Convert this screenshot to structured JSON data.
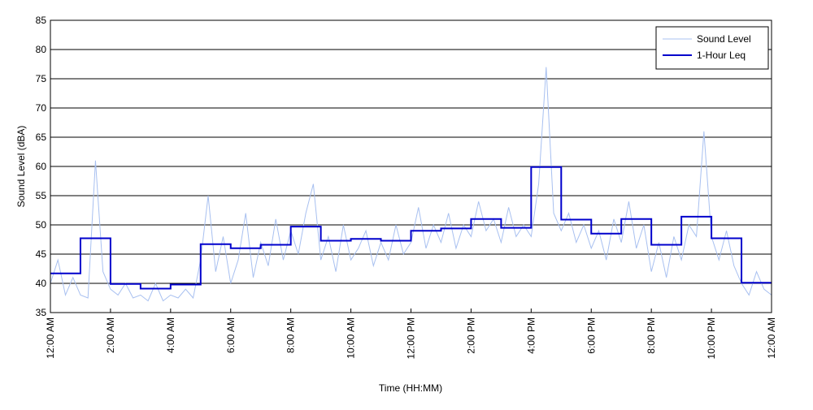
{
  "chart_data": {
    "type": "line",
    "xlabel": "Time (HH:MM)",
    "ylabel": "Sound Level (dBA)",
    "xlim": [
      0,
      24
    ],
    "ylim": [
      35,
      85
    ],
    "yticks": [
      35,
      40,
      45,
      50,
      55,
      60,
      65,
      70,
      75,
      80,
      85
    ],
    "xticks": [
      {
        "value": 0,
        "label": "12:00 AM"
      },
      {
        "value": 2,
        "label": "2:00 AM"
      },
      {
        "value": 4,
        "label": "4:00 AM"
      },
      {
        "value": 6,
        "label": "6:00 AM"
      },
      {
        "value": 8,
        "label": "8:00 AM"
      },
      {
        "value": 10,
        "label": "10:00 AM"
      },
      {
        "value": 12,
        "label": "12:00 PM"
      },
      {
        "value": 14,
        "label": "2:00 PM"
      },
      {
        "value": 16,
        "label": "4:00 PM"
      },
      {
        "value": 18,
        "label": "6:00 PM"
      },
      {
        "value": 20,
        "label": "8:00 PM"
      },
      {
        "value": 22,
        "label": "10:00 PM"
      },
      {
        "value": 24,
        "label": "12:00 AM"
      }
    ],
    "grid": "y",
    "legend": "northeast",
    "series": [
      {
        "name": "Sound Level",
        "color": "#a8c0f0",
        "drawstyle": "line",
        "x": [
          0,
          0.25,
          0.5,
          0.75,
          1,
          1.25,
          1.5,
          1.75,
          2,
          2.25,
          2.5,
          2.75,
          3,
          3.25,
          3.5,
          3.75,
          4,
          4.25,
          4.5,
          4.75,
          5,
          5.25,
          5.5,
          5.75,
          6,
          6.25,
          6.5,
          6.75,
          7,
          7.25,
          7.5,
          7.75,
          8,
          8.25,
          8.5,
          8.75,
          9,
          9.25,
          9.5,
          9.75,
          10,
          10.25,
          10.5,
          10.75,
          11,
          11.25,
          11.5,
          11.75,
          12,
          12.25,
          12.5,
          12.75,
          13,
          13.25,
          13.5,
          13.75,
          14,
          14.25,
          14.5,
          14.75,
          15,
          15.25,
          15.5,
          15.75,
          16,
          16.25,
          16.5,
          16.75,
          17,
          17.25,
          17.5,
          17.75,
          18,
          18.25,
          18.5,
          18.75,
          19,
          19.25,
          19.5,
          19.75,
          20,
          20.25,
          20.5,
          20.75,
          21,
          21.25,
          21.5,
          21.75,
          22,
          22.25,
          22.5,
          22.75,
          23,
          23.25,
          23.5,
          23.75,
          24
        ],
        "values": [
          40,
          44,
          38,
          41,
          38,
          37.5,
          61,
          42,
          39,
          38,
          40,
          37.5,
          38,
          37,
          40,
          37,
          38,
          37.5,
          39,
          37.5,
          44,
          55,
          42,
          48,
          40,
          44,
          52,
          41,
          47,
          43,
          51,
          44,
          49,
          45,
          52,
          57,
          44,
          48,
          42,
          50,
          44,
          46,
          49,
          43,
          47,
          44,
          50,
          45,
          47,
          53,
          46,
          50,
          47,
          52,
          46,
          50,
          48,
          54,
          49,
          51,
          47,
          53,
          48,
          50,
          48,
          57,
          77,
          52,
          49,
          52,
          47,
          50,
          46,
          49,
          44,
          51,
          47,
          54,
          46,
          50,
          42,
          47,
          41,
          48,
          44,
          50,
          48,
          66,
          48,
          44,
          49,
          43,
          40,
          38,
          42,
          39,
          38
        ]
      },
      {
        "name": "1-Hour Leq",
        "color": "#0000cc",
        "drawstyle": "steps-post",
        "x": [
          0,
          1,
          2,
          3,
          4,
          5,
          6,
          7,
          8,
          9,
          10,
          11,
          12,
          13,
          14,
          15,
          16,
          17,
          18,
          19,
          20,
          21,
          22,
          23
        ],
        "values": [
          41.7,
          47.7,
          39.9,
          39.1,
          39.8,
          46.7,
          46.0,
          46.6,
          49.7,
          47.3,
          47.6,
          47.3,
          49.0,
          49.4,
          51.0,
          49.5,
          59.9,
          50.9,
          48.5,
          51.0,
          46.6,
          51.4,
          47.7,
          40.1
        ]
      }
    ]
  }
}
